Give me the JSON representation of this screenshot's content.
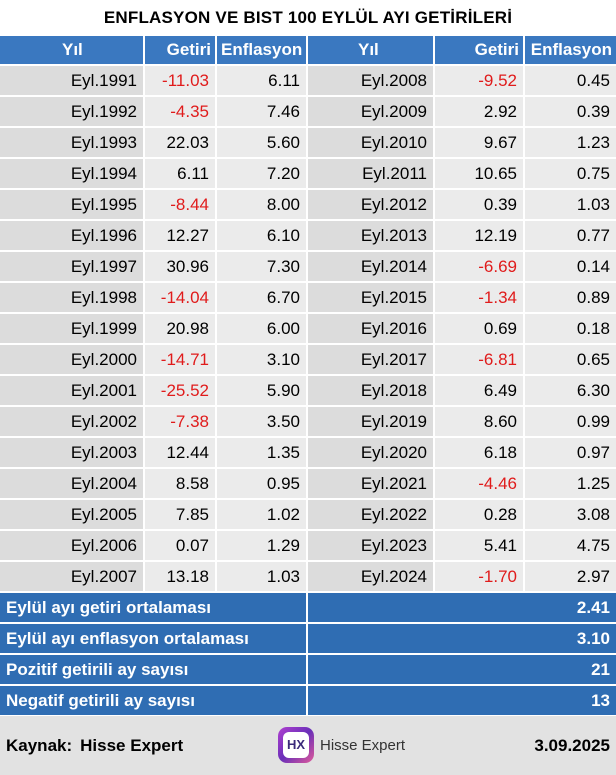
{
  "title": "ENFLASYON VE BIST 100 EYLÜL AYI GETİRİLERİ",
  "headers": {
    "year": "Yıl",
    "return": "Getiri",
    "inflation": "Enflasyon"
  },
  "rows": [
    {
      "left": {
        "year": "Eyl.1991",
        "ret": "-11.03",
        "inf": "6.11",
        "neg": true
      },
      "right": {
        "year": "Eyl.2008",
        "ret": "-9.52",
        "inf": "0.45",
        "neg": true
      }
    },
    {
      "left": {
        "year": "Eyl.1992",
        "ret": "-4.35",
        "inf": "7.46",
        "neg": true
      },
      "right": {
        "year": "Eyl.2009",
        "ret": "2.92",
        "inf": "0.39",
        "neg": false
      }
    },
    {
      "left": {
        "year": "Eyl.1993",
        "ret": "22.03",
        "inf": "5.60",
        "neg": false
      },
      "right": {
        "year": "Eyl.2010",
        "ret": "9.67",
        "inf": "1.23",
        "neg": false
      }
    },
    {
      "left": {
        "year": "Eyl.1994",
        "ret": "6.11",
        "inf": "7.20",
        "neg": false
      },
      "right": {
        "year": "Eyl.2011",
        "ret": "10.65",
        "inf": "0.75",
        "neg": false
      }
    },
    {
      "left": {
        "year": "Eyl.1995",
        "ret": "-8.44",
        "inf": "8.00",
        "neg": true
      },
      "right": {
        "year": "Eyl.2012",
        "ret": "0.39",
        "inf": "1.03",
        "neg": false
      }
    },
    {
      "left": {
        "year": "Eyl.1996",
        "ret": "12.27",
        "inf": "6.10",
        "neg": false
      },
      "right": {
        "year": "Eyl.2013",
        "ret": "12.19",
        "inf": "0.77",
        "neg": false
      }
    },
    {
      "left": {
        "year": "Eyl.1997",
        "ret": "30.96",
        "inf": "7.30",
        "neg": false
      },
      "right": {
        "year": "Eyl.2014",
        "ret": "-6.69",
        "inf": "0.14",
        "neg": true
      }
    },
    {
      "left": {
        "year": "Eyl.1998",
        "ret": "-14.04",
        "inf": "6.70",
        "neg": true
      },
      "right": {
        "year": "Eyl.2015",
        "ret": "-1.34",
        "inf": "0.89",
        "neg": true
      }
    },
    {
      "left": {
        "year": "Eyl.1999",
        "ret": "20.98",
        "inf": "6.00",
        "neg": false
      },
      "right": {
        "year": "Eyl.2016",
        "ret": "0.69",
        "inf": "0.18",
        "neg": false
      }
    },
    {
      "left": {
        "year": "Eyl.2000",
        "ret": "-14.71",
        "inf": "3.10",
        "neg": true
      },
      "right": {
        "year": "Eyl.2017",
        "ret": "-6.81",
        "inf": "0.65",
        "neg": true
      }
    },
    {
      "left": {
        "year": "Eyl.2001",
        "ret": "-25.52",
        "inf": "5.90",
        "neg": true
      },
      "right": {
        "year": "Eyl.2018",
        "ret": "6.49",
        "inf": "6.30",
        "neg": false
      }
    },
    {
      "left": {
        "year": "Eyl.2002",
        "ret": "-7.38",
        "inf": "3.50",
        "neg": true
      },
      "right": {
        "year": "Eyl.2019",
        "ret": "8.60",
        "inf": "0.99",
        "neg": false
      }
    },
    {
      "left": {
        "year": "Eyl.2003",
        "ret": "12.44",
        "inf": "1.35",
        "neg": false
      },
      "right": {
        "year": "Eyl.2020",
        "ret": "6.18",
        "inf": "0.97",
        "neg": false
      }
    },
    {
      "left": {
        "year": "Eyl.2004",
        "ret": "8.58",
        "inf": "0.95",
        "neg": false
      },
      "right": {
        "year": "Eyl.2021",
        "ret": "-4.46",
        "inf": "1.25",
        "neg": true
      }
    },
    {
      "left": {
        "year": "Eyl.2005",
        "ret": "7.85",
        "inf": "1.02",
        "neg": false
      },
      "right": {
        "year": "Eyl.2022",
        "ret": "0.28",
        "inf": "3.08",
        "neg": false
      }
    },
    {
      "left": {
        "year": "Eyl.2006",
        "ret": "0.07",
        "inf": "1.29",
        "neg": false
      },
      "right": {
        "year": "Eyl.2023",
        "ret": "5.41",
        "inf": "4.75",
        "neg": false
      }
    },
    {
      "left": {
        "year": "Eyl.2007",
        "ret": "13.18",
        "inf": "1.03",
        "neg": false
      },
      "right": {
        "year": "Eyl.2024",
        "ret": "-1.70",
        "inf": "2.97",
        "neg": true
      }
    }
  ],
  "summary": [
    {
      "label": "Eylül ayı getiri ortalaması",
      "value": "2.41"
    },
    {
      "label": "Eylül ayı enflasyon ortalaması",
      "value": "3.10"
    },
    {
      "label": "Pozitif getirili ay sayısı",
      "value": "21"
    },
    {
      "label": "Negatif getirili ay sayısı",
      "value": "13"
    }
  ],
  "footer": {
    "source_label": "Kaynak:",
    "source_value": "Hisse Expert",
    "logo_text": "HX",
    "brand_name": "Hisse Expert",
    "date": "3.09.2025"
  },
  "colors": {
    "header_blue": "#3a78c0",
    "summary_blue": "#2f6db3",
    "negative_red": "#e01b1b"
  }
}
